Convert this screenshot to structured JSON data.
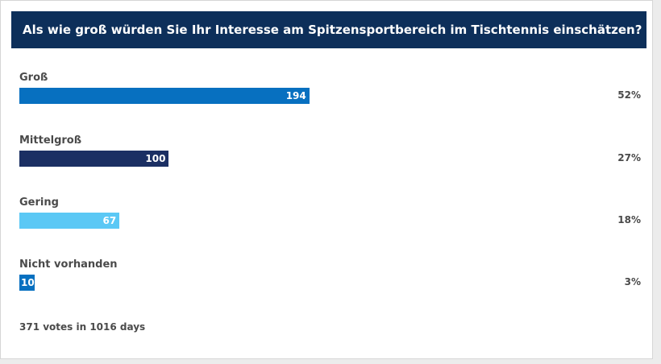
{
  "poll": {
    "question": "Als wie groß würden Sie Ihr Interesse am Spitzensportbereich im Tischtennis einschätzen?",
    "footer": "371 votes in 1016 days"
  },
  "colors": {
    "header_bg": "#0d2f5a",
    "gross": "#0770c0",
    "mittelgross": "#1b2f63",
    "gering": "#5bc8f5",
    "nicht_vorhanden": "#0770c0"
  },
  "chart_data": {
    "type": "bar",
    "orientation": "horizontal",
    "title": "Als wie groß würden Sie Ihr Interesse am Spitzensportbereich im Tischtennis einschätzen?",
    "categories": [
      "Groß",
      "Mittelgroß",
      "Gering",
      "Nicht vorhanden"
    ],
    "values": [
      194,
      100,
      67,
      10
    ],
    "percentages": [
      "52%",
      "27%",
      "18%",
      "3%"
    ],
    "value_labels": [
      "194",
      "100",
      "67",
      "10"
    ],
    "xlim": [
      0,
      371
    ],
    "grid": false,
    "legend": "none"
  }
}
